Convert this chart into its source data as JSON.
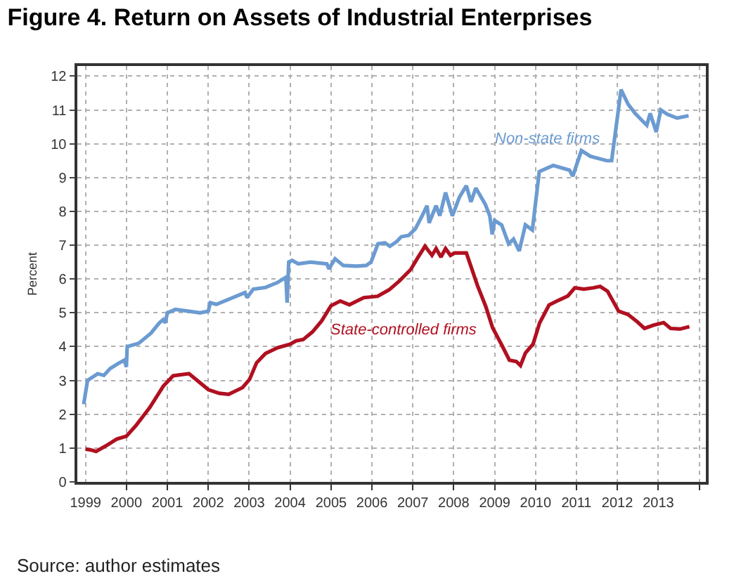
{
  "chart_data": {
    "type": "line",
    "title": "Figure 4. Return on Assets of Industrial Enterprises",
    "ylabel": "Percent",
    "annotations": [
      "Source: author estimates"
    ],
    "xlim": [
      "1998-10-20",
      "2014-03-01"
    ],
    "ylim": [
      0,
      12.3
    ],
    "xticks": [
      {
        "value": "1999-01-01",
        "label": "1999"
      },
      {
        "value": "2000-01-01",
        "label": "2000"
      },
      {
        "value": "2001-01-01",
        "label": "2001"
      },
      {
        "value": "2002-01-01",
        "label": "2002"
      },
      {
        "value": "2003-01-01",
        "label": "2003"
      },
      {
        "value": "2004-01-01",
        "label": "2004"
      },
      {
        "value": "2005-01-01",
        "label": "2005"
      },
      {
        "value": "2006-01-01",
        "label": "2006"
      },
      {
        "value": "2007-01-01",
        "label": "2007"
      },
      {
        "value": "2008-01-01",
        "label": "2008"
      },
      {
        "value": "2009-01-01",
        "label": "2009"
      },
      {
        "value": "2010-01-01",
        "label": "2010"
      },
      {
        "value": "2011-01-01",
        "label": "2011"
      },
      {
        "value": "2012-01-01",
        "label": "2012"
      },
      {
        "value": "2013-01-01",
        "label": "2013"
      },
      {
        "value": "2014-01-01",
        "label": null
      }
    ],
    "yticks": [
      0,
      1,
      2,
      3,
      4,
      5,
      6,
      7,
      8,
      9,
      10,
      11,
      12
    ],
    "grid": true,
    "line_style": "solid",
    "marker": "none",
    "series": [
      {
        "name": "Non-state firms",
        "color": "#6b9bd1",
        "x": [
          "1998-12-16",
          "1999-01-19",
          "1999-04-20",
          "1999-06-14",
          "1999-08-08",
          "1999-10-20",
          "1999-12-13",
          "2000-01-01",
          "2000-01-08",
          "2000-04-20",
          "2000-08-08",
          "2000-10-20",
          "2000-11-25",
          "2000-12-13",
          "2001-01-01",
          "2001-03-14",
          "2001-07-02",
          "2001-10-20",
          "2002-01-01",
          "2002-01-19",
          "2002-03-14",
          "2002-07-02",
          "2002-11-25",
          "2002-12-13",
          "2003-02-06",
          "2003-05-27",
          "2003-09-13",
          "2003-11-25",
          "2003-12-06",
          "2003-12-20",
          "2004-01-19",
          "2004-03-14",
          "2004-07-02",
          "2004-11-25",
          "2004-12-13",
          "2005-02-06",
          "2005-04-20",
          "2005-08-08",
          "2005-11-11",
          "2005-12-24",
          "2006-02-24",
          "2006-04-27",
          "2006-06-10",
          "2006-08-08",
          "2006-09-20",
          "2006-11-25",
          "2007-01-23",
          "2007-03-25",
          "2007-05-08",
          "2007-05-27",
          "2007-07-28",
          "2007-08-30",
          "2007-10-20",
          "2007-12-20",
          "2008-02-21",
          "2008-04-23",
          "2008-06-03",
          "2008-07-17",
          "2008-10-09",
          "2008-11-18",
          "2008-12-10",
          "2009-01-01",
          "2009-03-04",
          "2009-05-05",
          "2009-06-18",
          "2009-08-08",
          "2009-10-02",
          "2009-12-03",
          "2010-02-03",
          "2010-06-07",
          "2010-10-31",
          "2010-11-29",
          "2011-02-14",
          "2011-05-05",
          "2011-09-28",
          "2011-11-11",
          "2012-02-03",
          "2012-04-06",
          "2012-06-07",
          "2012-08-08",
          "2012-09-20",
          "2012-10-20",
          "2012-12-13",
          "2013-01-23",
          "2013-03-25",
          "2013-06-18",
          "2013-09-28"
        ],
        "values": [
          2.3,
          3.0,
          3.2,
          3.15,
          3.35,
          3.5,
          3.6,
          3.4,
          4.0,
          4.1,
          4.4,
          4.7,
          4.8,
          4.7,
          5.0,
          5.1,
          5.05,
          5.0,
          5.05,
          5.3,
          5.25,
          5.4,
          5.6,
          5.45,
          5.7,
          5.75,
          5.9,
          6.05,
          5.3,
          6.5,
          6.55,
          6.45,
          6.5,
          6.45,
          6.3,
          6.6,
          6.4,
          6.38,
          6.4,
          6.5,
          7.04,
          7.07,
          6.97,
          7.1,
          7.25,
          7.29,
          7.48,
          7.87,
          8.17,
          7.66,
          8.17,
          7.87,
          8.56,
          7.87,
          8.42,
          8.76,
          8.28,
          8.69,
          8.21,
          7.87,
          7.32,
          7.73,
          7.6,
          7.04,
          7.18,
          6.83,
          7.6,
          7.45,
          9.18,
          9.36,
          9.22,
          9.04,
          9.8,
          9.63,
          9.5,
          9.5,
          11.6,
          11.17,
          10.9,
          10.69,
          10.55,
          10.9,
          10.35,
          11.0,
          10.87,
          10.76,
          10.83
        ]
      },
      {
        "name": "State-controlled firms",
        "color": "#b01020",
        "x": [
          "1999-01-01",
          "1999-02-24",
          "1999-04-05",
          "1999-07-20",
          "1999-10-09",
          "2000-01-01",
          "2000-03-25",
          "2000-07-28",
          "2000-11-25",
          "2001-02-21",
          "2001-07-13",
          "2002-01-01",
          "2002-04-09",
          "2002-07-02",
          "2002-11-03",
          "2003-01-04",
          "2003-03-08",
          "2003-05-27",
          "2003-09-13",
          "2004-01-01",
          "2004-02-24",
          "2004-04-27",
          "2004-07-20",
          "2004-10-09",
          "2005-01-01",
          "2005-03-25",
          "2005-06-14",
          "2005-10-20",
          "2006-02-21",
          "2006-06-03",
          "2006-09-02",
          "2006-12-13",
          "2007-02-14",
          "2007-04-20",
          "2007-06-21",
          "2007-07-28",
          "2007-09-09",
          "2007-10-20",
          "2007-12-03",
          "2008-01-08",
          "2008-04-23",
          "2008-07-31",
          "2008-10-13",
          "2008-12-13",
          "2009-03-11",
          "2009-05-12",
          "2009-07-13",
          "2009-08-19",
          "2009-10-02",
          "2009-12-10",
          "2010-02-06",
          "2010-05-01",
          "2010-07-24",
          "2010-10-16",
          "2010-12-17",
          "2011-03-08",
          "2011-05-31",
          "2011-07-31",
          "2011-10-05",
          "2012-01-12",
          "2012-04-06",
          "2012-06-28",
          "2012-08-30",
          "2012-11-22",
          "2013-02-17",
          "2013-04-20",
          "2013-07-13",
          "2013-10-05"
        ],
        "values": [
          0.97,
          0.94,
          0.9,
          1.1,
          1.27,
          1.35,
          1.66,
          2.2,
          2.83,
          3.14,
          3.2,
          2.73,
          2.62,
          2.59,
          2.79,
          3.03,
          3.52,
          3.8,
          3.97,
          4.07,
          4.17,
          4.21,
          4.44,
          4.76,
          5.21,
          5.35,
          5.24,
          5.45,
          5.49,
          5.68,
          5.94,
          6.28,
          6.63,
          6.97,
          6.7,
          6.9,
          6.65,
          6.9,
          6.7,
          6.77,
          6.77,
          5.81,
          5.19,
          4.56,
          4.01,
          3.6,
          3.56,
          3.44,
          3.81,
          4.08,
          4.7,
          5.23,
          5.37,
          5.5,
          5.74,
          5.7,
          5.74,
          5.78,
          5.64,
          5.05,
          4.95,
          4.73,
          4.54,
          4.64,
          4.71,
          4.54,
          4.52,
          4.59
        ]
      }
    ]
  }
}
